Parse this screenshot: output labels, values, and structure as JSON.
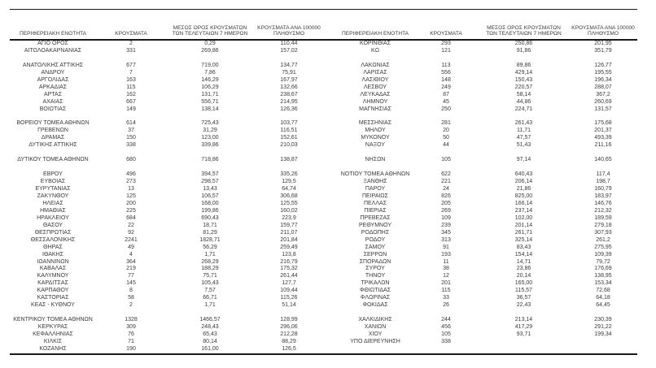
{
  "colors": {
    "text": "#3a3a3a",
    "border": "#1a1a1a",
    "background": "#ffffff"
  },
  "table": {
    "headers": {
      "region": "ΠΕΡΙΦΕΡΕΙΑΚΗ ΕΝΟΤΗΤΑ",
      "cases": "ΚΡΟΥΣΜΑΤΑ",
      "avg7": "ΜΕΣΟΣ ΟΡΟΣ ΚΡΟΥΣΜΑΤΩΝ\nΤΩΝ ΤΕΛΕΥΤΑΙΩΝ 7 ΗΜΕΡΩΝ",
      "per100k": "ΚΡΟΥΣΜΑΤΑ ΑΝΑ 100000\nΠΛΗΘΥΣΜΟ"
    },
    "left_rows": [
      [
        "ΑΓΙΟ ΟΡΟΣ",
        "2",
        "0,29",
        "110,44"
      ],
      [
        "ΑΙΤΩΛΟΑΚΑΡΝΑΝΙΑΣ",
        "331",
        "269,86",
        "157,02"
      ],
      null,
      [
        "ΑΝΑΤΟΛΙΚΗΣ ΑΤΤΙΚΗΣ",
        "677",
        "719,00",
        "134,77"
      ],
      [
        "ΑΝΔΡΟΥ",
        "7",
        "7,86",
        "75,91"
      ],
      [
        "ΑΡΓΟΛΙΔΑΣ",
        "163",
        "146,29",
        "167,97"
      ],
      [
        "ΑΡΚΑΔΙΑΣ",
        "115",
        "106,29",
        "132,66"
      ],
      [
        "ΑΡΤΑΣ",
        "162",
        "131,71",
        "238,67"
      ],
      [
        "ΑΧΑΪΑΣ",
        "667",
        "556,71",
        "214,95"
      ],
      [
        "ΒΟΙΩΤΙΑΣ",
        "149",
        "138,14",
        "126,36"
      ],
      null,
      [
        "ΒΟΡΕΙΟΥ ΤΟΜΕΑ ΑΘΗΝΩΝ",
        "614",
        "725,43",
        "103,77"
      ],
      [
        "ΓΡΕΒΕΝΩΝ",
        "37",
        "31,29",
        "116,51"
      ],
      [
        "ΔΡΑΜΑΣ",
        "150",
        "123,00",
        "152,61"
      ],
      [
        "ΔΥΤΙΚΗΣ ΑΤΤΙΚΗΣ",
        "338",
        "339,86",
        "210,03"
      ],
      null,
      [
        "ΔΥΤΙΚΟΥ ΤΟΜΕΑ ΑΘΗΝΩΝ",
        "680",
        "718,86",
        "138,87"
      ],
      null,
      [
        "ΕΒΡΟΥ",
        "496",
        "394,57",
        "335,26"
      ],
      [
        "ΕΥΒΟΙΑΣ",
        "273",
        "298,57",
        "129,5"
      ],
      [
        "ΕΥΡΥΤΑΝΙΑΣ",
        "13",
        "13,43",
        "64,74"
      ],
      [
        "ΖΑΚΥΝΘΟΥ",
        "125",
        "106,57",
        "306,68"
      ],
      [
        "ΗΛΕΙΑΣ",
        "200",
        "168,00",
        "125,55"
      ],
      [
        "ΗΜΑΘΙΑΣ",
        "225",
        "199,86",
        "160,02"
      ],
      [
        "ΗΡΑΚΛΕΙΟΥ",
        "684",
        "690,43",
        "223,9"
      ],
      [
        "ΘΑΣΟΥ",
        "22",
        "18,71",
        "159,77"
      ],
      [
        "ΘΕΣΠΡΩΤΙΑΣ",
        "92",
        "81,29",
        "211,07"
      ],
      [
        "ΘΕΣΣΑΛΟΝΙΚΗΣ",
        "2241",
        "1828,71",
        "201,84"
      ],
      [
        "ΘΗΡΑΣ",
        "49",
        "56,29",
        "259,49"
      ],
      [
        "ΙΘΑΚΗΣ",
        "4",
        "1,71",
        "123,8"
      ],
      [
        "ΙΩΑΝΝΙΝΩΝ",
        "364",
        "268,29",
        "216,79"
      ],
      [
        "ΚΑΒΑΛΑΣ",
        "219",
        "188,29",
        "175,32"
      ],
      [
        "ΚΑΛΥΜΝΟΥ",
        "77",
        "75,71",
        "261,44"
      ],
      [
        "ΚΑΡΔΙΤΣΑΣ",
        "145",
        "105,43",
        "127,7"
      ],
      [
        "ΚΑΡΠΑΘΟΥ",
        "8",
        "7,57",
        "109,44"
      ],
      [
        "ΚΑΣΤΟΡΙΑΣ",
        "58",
        "66,71",
        "115,26"
      ],
      [
        "ΚΕΑΣ - ΚΥΘΝΟΥ",
        "2",
        "1,71",
        "51,14"
      ],
      null,
      [
        "ΚΕΝΤΡΙΚΟΥ ΤΟΜΕΑ ΑΘΗΝΩΝ",
        "1328",
        "1466,57",
        "128,99"
      ],
      [
        "ΚΕΡΚΥΡΑΣ",
        "309",
        "248,43",
        "296,06"
      ],
      [
        "ΚΕΦΑΛΛΗΝΙΑΣ",
        "76",
        "65,43",
        "212,28"
      ],
      [
        "ΚΙΛΚΙΣ",
        "71",
        "80,14",
        "88,29"
      ],
      [
        "ΚΟΖΑΝΗΣ",
        "190",
        "161,00",
        "126,5"
      ]
    ],
    "right_rows": [
      [
        "ΚΟΡΙΝΘΙΑΣ",
        "293",
        "250,86",
        "201,95"
      ],
      [
        "ΚΩ",
        "121",
        "91,86",
        "351,79"
      ],
      null,
      [
        "ΛΑΚΩΝΙΑΣ",
        "113",
        "89,86",
        "126,77"
      ],
      [
        "ΛΑΡΙΣΑΣ",
        "556",
        "429,14",
        "195,55"
      ],
      [
        "ΛΑΣΙΘΙΟΥ",
        "148",
        "150,43",
        "196,34"
      ],
      [
        "ΛΕΣΒΟΥ",
        "249",
        "220,57",
        "288,07"
      ],
      [
        "ΛΕΥΚΑΔΑΣ",
        "87",
        "58,14",
        "367,2"
      ],
      [
        "ΛΗΜΝΟΥ",
        "45",
        "44,86",
        "260,69"
      ],
      [
        "ΜΑΓΝΗΣΙΑΣ",
        "250",
        "224,71",
        "131,57"
      ],
      null,
      [
        "ΜΕΣΣΗΝΙΑΣ",
        "281",
        "261,43",
        "175,68"
      ],
      [
        "ΜΗΛΟΥ",
        "20",
        "11,71",
        "201,37"
      ],
      [
        "ΜΥΚΟΝΟΥ",
        "50",
        "47,57",
        "493,39"
      ],
      [
        "ΝΑΞΟΥ",
        "44",
        "51,43",
        "211,16"
      ],
      null,
      [
        "ΝΗΣΩΝ",
        "105",
        "97,14",
        "140,65"
      ],
      null,
      [
        "ΝΟΤΙΟΥ ΤΟΜΕΑ ΑΘΗΝΩΝ",
        "622",
        "640,43",
        "117,4"
      ],
      [
        "ΞΑΝΘΗΣ",
        "221",
        "206,14",
        "198,7"
      ],
      [
        "ΠΑΡΟΥ",
        "24",
        "21,86",
        "160,79"
      ],
      [
        "ΠΕΙΡΑΙΩΣ",
        "826",
        "825,00",
        "183,97"
      ],
      [
        "ΠΕΛΛΑΣ",
        "205",
        "166,14",
        "146,76"
      ],
      [
        "ΠΙΕΡΙΑΣ",
        "269",
        "237,14",
        "212,32"
      ],
      [
        "ΠΡΕΒΕΖΑΣ",
        "109",
        "102,00",
        "189,59"
      ],
      [
        "ΡΕΘΥΜΝΟΥ",
        "239",
        "201,14",
        "279,18"
      ],
      [
        "ΡΟΔΟΠΗΣ",
        "345",
        "261,71",
        "307,93"
      ],
      [
        "ΡΟΔΟΥ",
        "313",
        "325,14",
        "261,2"
      ],
      [
        "ΣΑΜΟΥ",
        "91",
        "83,43",
        "275,95"
      ],
      [
        "ΣΕΡΡΩΝ",
        "193",
        "154,14",
        "109,39"
      ],
      [
        "ΣΠΟΡΑΔΩΝ",
        "11",
        "14,71",
        "79,72"
      ],
      [
        "ΣΥΡΟΥ",
        "38",
        "23,86",
        "176,69"
      ],
      [
        "ΤΗΝΟΥ",
        "12",
        "20,14",
        "138,95"
      ],
      [
        "ΤΡΙΚΑΛΩΝ",
        "201",
        "165,00",
        "153,34"
      ],
      [
        "ΦΘΙΩΤΙΔΑΣ",
        "115",
        "115,57",
        "72,68"
      ],
      [
        "ΦΛΩΡΙΝΑΣ",
        "33",
        "36,57",
        "64,18"
      ],
      [
        "ΦΩΚΙΔΑΣ",
        "26",
        "22,43",
        "64,45"
      ],
      null,
      [
        "ΧΑΛΚΙΔΙΚΗΣ",
        "244",
        "213,14",
        "230,39"
      ],
      [
        "ΧΑΝΙΩΝ",
        "456",
        "417,29",
        "291,22"
      ],
      [
        "ΧΙΟΥ",
        "105",
        "93,71",
        "199,34"
      ],
      [
        "ΥΠΟ ΔΙΕΡΕΥΝΗΣΗ",
        "338",
        "",
        ""
      ]
    ]
  }
}
